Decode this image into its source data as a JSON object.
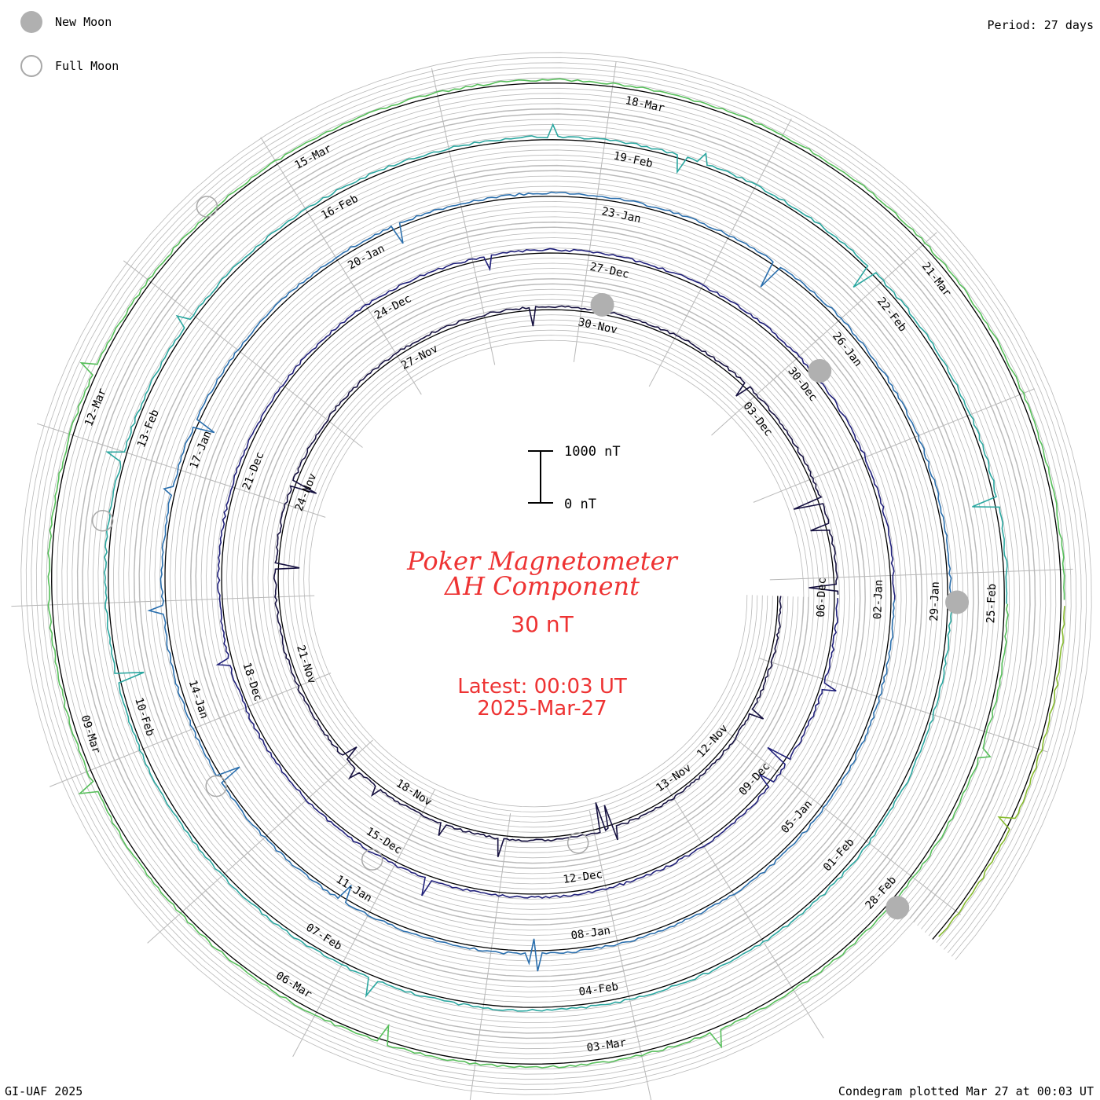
{
  "legend": {
    "new_moon_label": "New Moon",
    "full_moon_label": "Full Moon"
  },
  "period_label": "Period: 27 days",
  "footer_left": "GI-UAF 2025",
  "footer_right": "Condegram plotted Mar 27 at 00:03 UT",
  "center": {
    "title_line1": "Poker Magnetometer",
    "title_line2": "ΔH Component",
    "scale_value": "30 nT",
    "latest_line1": "Latest: 00:03 UT",
    "latest_line2": "2025-Mar-27",
    "scale_top_label": "1000 nT",
    "scale_bottom_label": "0 nT"
  },
  "colors": {
    "text_accent": "#ee3333",
    "grid": "#b8b8b8",
    "baseline": "#000000",
    "moon_new": "#b0b0b0",
    "moon_full": "#a8a8a8",
    "ring_colors": [
      "#151040",
      "#1f1f7a",
      "#2a6fae",
      "#2aa7a0",
      "#56bf5a",
      "#87bb2e",
      "#b8a419",
      "#c7731a",
      "#bf4d12",
      "#b11212"
    ]
  },
  "chart_data": {
    "type": "condegram",
    "period_days": 27,
    "start_date": "2024-11-09",
    "end_date": "2025-03-27",
    "units": "nT",
    "scale_bar_nT": [
      0,
      1000
    ],
    "date_labels": [
      "12-Nov",
      "13-Nov",
      "18-Nov",
      "21-Nov",
      "24-Nov",
      "27-Nov",
      "30-Nov",
      "03-Dec",
      "06-Dec",
      "09-Dec",
      "12-Dec",
      "15-Dec",
      "18-Dec",
      "21-Dec",
      "24-Dec",
      "27-Dec",
      "30-Dec",
      "02-Jan",
      "05-Jan",
      "08-Jan",
      "11-Jan",
      "14-Jan",
      "17-Jan",
      "20-Jan",
      "23-Jan",
      "26-Jan",
      "29-Jan",
      "01-Feb",
      "04-Feb",
      "07-Feb",
      "10-Feb",
      "13-Feb",
      "16-Feb",
      "19-Feb",
      "22-Feb",
      "25-Feb",
      "28-Feb",
      "03-Mar",
      "06-Mar",
      "09-Mar",
      "12-Mar",
      "15-Mar",
      "18-Mar",
      "21-Mar"
    ],
    "new_moons": [
      "2024-11-30",
      "2024-12-30",
      "2025-01-29",
      "2025-02-28"
    ],
    "full_moons": [
      "2024-11-15",
      "2024-12-15",
      "2025-01-13",
      "2025-02-12",
      "2025-03-14"
    ]
  }
}
